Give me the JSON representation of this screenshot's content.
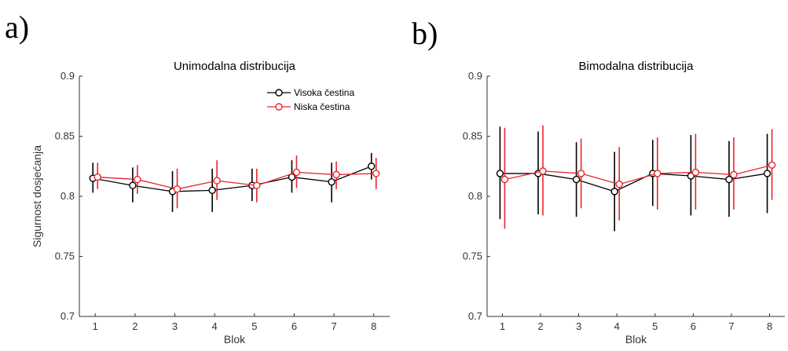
{
  "panel_letters": [
    "a)",
    "b)"
  ],
  "chart_data": [
    {
      "type": "line",
      "title": "Unimodalna distribucija",
      "xlabel": "Blok",
      "ylabel": "Sigurnost dosjećanja",
      "x": [
        1,
        2,
        3,
        4,
        5,
        6,
        7,
        8
      ],
      "xlim": [
        0.6,
        8.4
      ],
      "ylim": [
        0.7,
        0.9
      ],
      "yticks": [
        "0.7",
        "0.75",
        "0.8",
        "0.85",
        "0.9"
      ],
      "xticks": [
        "1",
        "2",
        "3",
        "4",
        "5",
        "6",
        "7",
        "8"
      ],
      "legend_position": "top-right",
      "series": [
        {
          "name": "Visoka čestina",
          "color": "#000000",
          "values": [
            0.815,
            0.809,
            0.804,
            0.805,
            0.809,
            0.816,
            0.812,
            0.825
          ],
          "err_low": [
            0.803,
            0.795,
            0.787,
            0.787,
            0.796,
            0.803,
            0.795,
            0.814
          ],
          "err_high": [
            0.828,
            0.824,
            0.821,
            0.823,
            0.823,
            0.83,
            0.828,
            0.836
          ]
        },
        {
          "name": "Niska čestina",
          "color": "#e8262b",
          "values": [
            0.816,
            0.814,
            0.806,
            0.813,
            0.809,
            0.82,
            0.818,
            0.819
          ],
          "err_low": [
            0.806,
            0.802,
            0.79,
            0.797,
            0.795,
            0.807,
            0.806,
            0.806
          ],
          "err_high": [
            0.828,
            0.826,
            0.823,
            0.83,
            0.823,
            0.834,
            0.829,
            0.832
          ]
        }
      ]
    },
    {
      "type": "line",
      "title": "Bimodalna distribucija",
      "xlabel": "Blok",
      "ylabel": "",
      "x": [
        1,
        2,
        3,
        4,
        5,
        6,
        7,
        8
      ],
      "xlim": [
        0.6,
        8.4
      ],
      "ylim": [
        0.7,
        0.9
      ],
      "yticks": [
        "0.7",
        "0.75",
        "0.8",
        "0.85",
        "0.9"
      ],
      "xticks": [
        "1",
        "2",
        "3",
        "4",
        "5",
        "6",
        "7",
        "8"
      ],
      "series": [
        {
          "name": "Visoka čestina",
          "color": "#000000",
          "values": [
            0.819,
            0.819,
            0.814,
            0.804,
            0.819,
            0.817,
            0.814,
            0.819
          ],
          "err_low": [
            0.781,
            0.785,
            0.783,
            0.771,
            0.792,
            0.784,
            0.783,
            0.786
          ],
          "err_high": [
            0.858,
            0.854,
            0.845,
            0.837,
            0.847,
            0.851,
            0.846,
            0.852
          ]
        },
        {
          "name": "Niska čestina",
          "color": "#e8262b",
          "values": [
            0.814,
            0.821,
            0.819,
            0.81,
            0.819,
            0.82,
            0.818,
            0.826
          ],
          "err_low": [
            0.773,
            0.784,
            0.79,
            0.78,
            0.789,
            0.789,
            0.789,
            0.797
          ],
          "err_high": [
            0.857,
            0.859,
            0.848,
            0.841,
            0.849,
            0.852,
            0.849,
            0.856
          ]
        }
      ]
    }
  ]
}
